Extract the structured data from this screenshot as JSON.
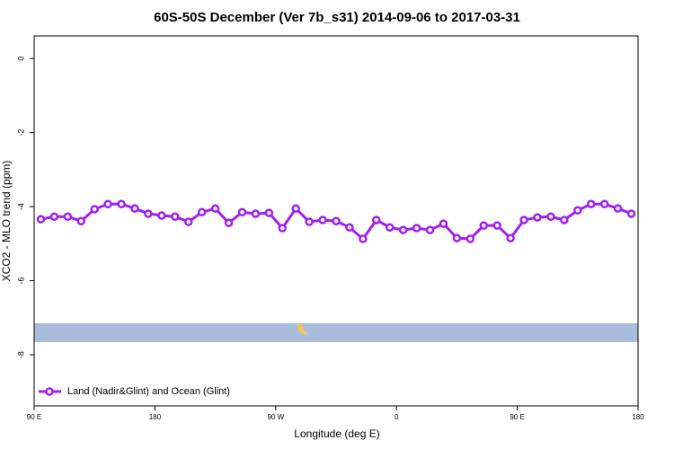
{
  "chart_data": {
    "type": "line",
    "title": "60S-50S December (Ver 7b_s31)   2014-09-06 to 2017-03-31",
    "x_label": "Longitude (deg E)",
    "y_label": "XCO2 - MLO trend (ppm)",
    "xlim": [
      90,
      540
    ],
    "ylim": [
      -9.38,
      0.61
    ],
    "xticks": [
      {
        "value": 90,
        "label": "90 E"
      },
      {
        "value": 180,
        "label": "180"
      },
      {
        "value": 270,
        "label": "90 W"
      },
      {
        "value": 360,
        "label": "0"
      },
      {
        "value": 450,
        "label": "90 E"
      },
      {
        "value": 540,
        "label": "180"
      }
    ],
    "yticks": [
      0,
      -2,
      -4,
      -6,
      -8
    ],
    "legend_position": "bottom-left",
    "x": [
      95,
      105,
      115,
      125,
      135,
      145,
      155,
      165,
      175,
      185,
      195,
      205,
      215,
      225,
      235,
      245,
      255,
      265,
      275,
      285,
      295,
      305,
      315,
      325,
      335,
      345,
      355,
      365,
      375,
      385,
      395,
      405,
      415,
      425,
      435,
      445,
      455,
      465,
      475,
      485,
      495,
      505,
      515,
      525,
      535
    ],
    "series": [
      {
        "name": "Land (Nadir&Glint) and Ocean (Glint)",
        "color": "#a020f0",
        "values": [
          -4.34,
          -4.27,
          -4.27,
          -4.39,
          -4.07,
          -3.93,
          -3.93,
          -4.05,
          -4.19,
          -4.24,
          -4.27,
          -4.41,
          -4.15,
          -4.05,
          -4.44,
          -4.15,
          -4.19,
          -4.17,
          -4.58,
          -4.05,
          -4.41,
          -4.36,
          -4.39,
          -4.56,
          -4.87,
          -4.36,
          -4.56,
          -4.63,
          -4.58,
          -4.63,
          -4.46,
          -4.85,
          -4.87,
          -4.51,
          -4.51,
          -4.85,
          -4.36,
          -4.29,
          -4.27,
          -4.36,
          -4.1,
          -3.93,
          -3.93,
          -4.05,
          -4.19
        ]
      }
    ]
  }
}
